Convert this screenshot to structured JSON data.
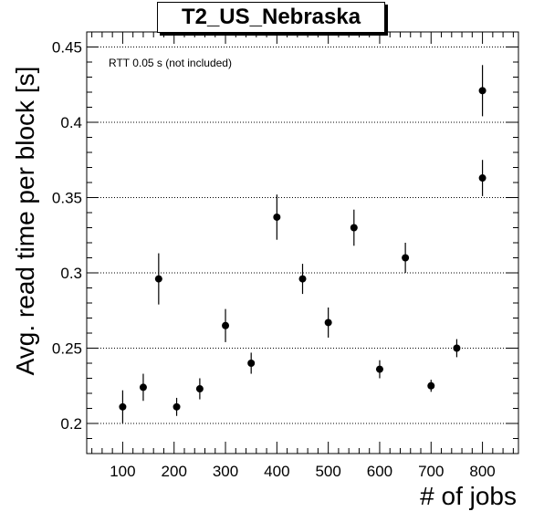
{
  "chart_data": {
    "type": "scatter",
    "title": "T2_US_Nebraska",
    "xlabel": "# of jobs",
    "ylabel": "Avg. read time per block [s]",
    "annotation": "RTT 0.05 s (not included)",
    "xlim": [
      30,
      870
    ],
    "ylim": [
      0.18,
      0.46
    ],
    "x_ticks": [
      100,
      200,
      300,
      400,
      500,
      600,
      700,
      800
    ],
    "x_tick_labels": [
      "100",
      "200",
      "300",
      "400",
      "500",
      "600",
      "700",
      "800"
    ],
    "y_ticks": [
      0.2,
      0.25,
      0.3,
      0.35,
      0.4,
      0.45
    ],
    "y_tick_labels": [
      "0.2",
      "0.25",
      "0.3",
      "0.35",
      "0.4",
      "0.45"
    ],
    "grid": "horizontal dotted",
    "marker_color": "#000000",
    "points": [
      {
        "x": 100,
        "y": 0.211,
        "err": 0.011
      },
      {
        "x": 140,
        "y": 0.224,
        "err": 0.009
      },
      {
        "x": 170,
        "y": 0.296,
        "err": 0.017
      },
      {
        "x": 205,
        "y": 0.211,
        "err": 0.006
      },
      {
        "x": 250,
        "y": 0.223,
        "err": 0.007
      },
      {
        "x": 300,
        "y": 0.265,
        "err": 0.011
      },
      {
        "x": 350,
        "y": 0.24,
        "err": 0.007
      },
      {
        "x": 400,
        "y": 0.337,
        "err": 0.015
      },
      {
        "x": 450,
        "y": 0.296,
        "err": 0.01
      },
      {
        "x": 500,
        "y": 0.267,
        "err": 0.01
      },
      {
        "x": 550,
        "y": 0.33,
        "err": 0.012
      },
      {
        "x": 600,
        "y": 0.236,
        "err": 0.006
      },
      {
        "x": 650,
        "y": 0.31,
        "err": 0.01
      },
      {
        "x": 700,
        "y": 0.225,
        "err": 0.004
      },
      {
        "x": 750,
        "y": 0.25,
        "err": 0.006
      },
      {
        "x": 800,
        "y": 0.363,
        "err": 0.012
      },
      {
        "x": 800,
        "y": 0.421,
        "err": 0.017
      }
    ]
  }
}
